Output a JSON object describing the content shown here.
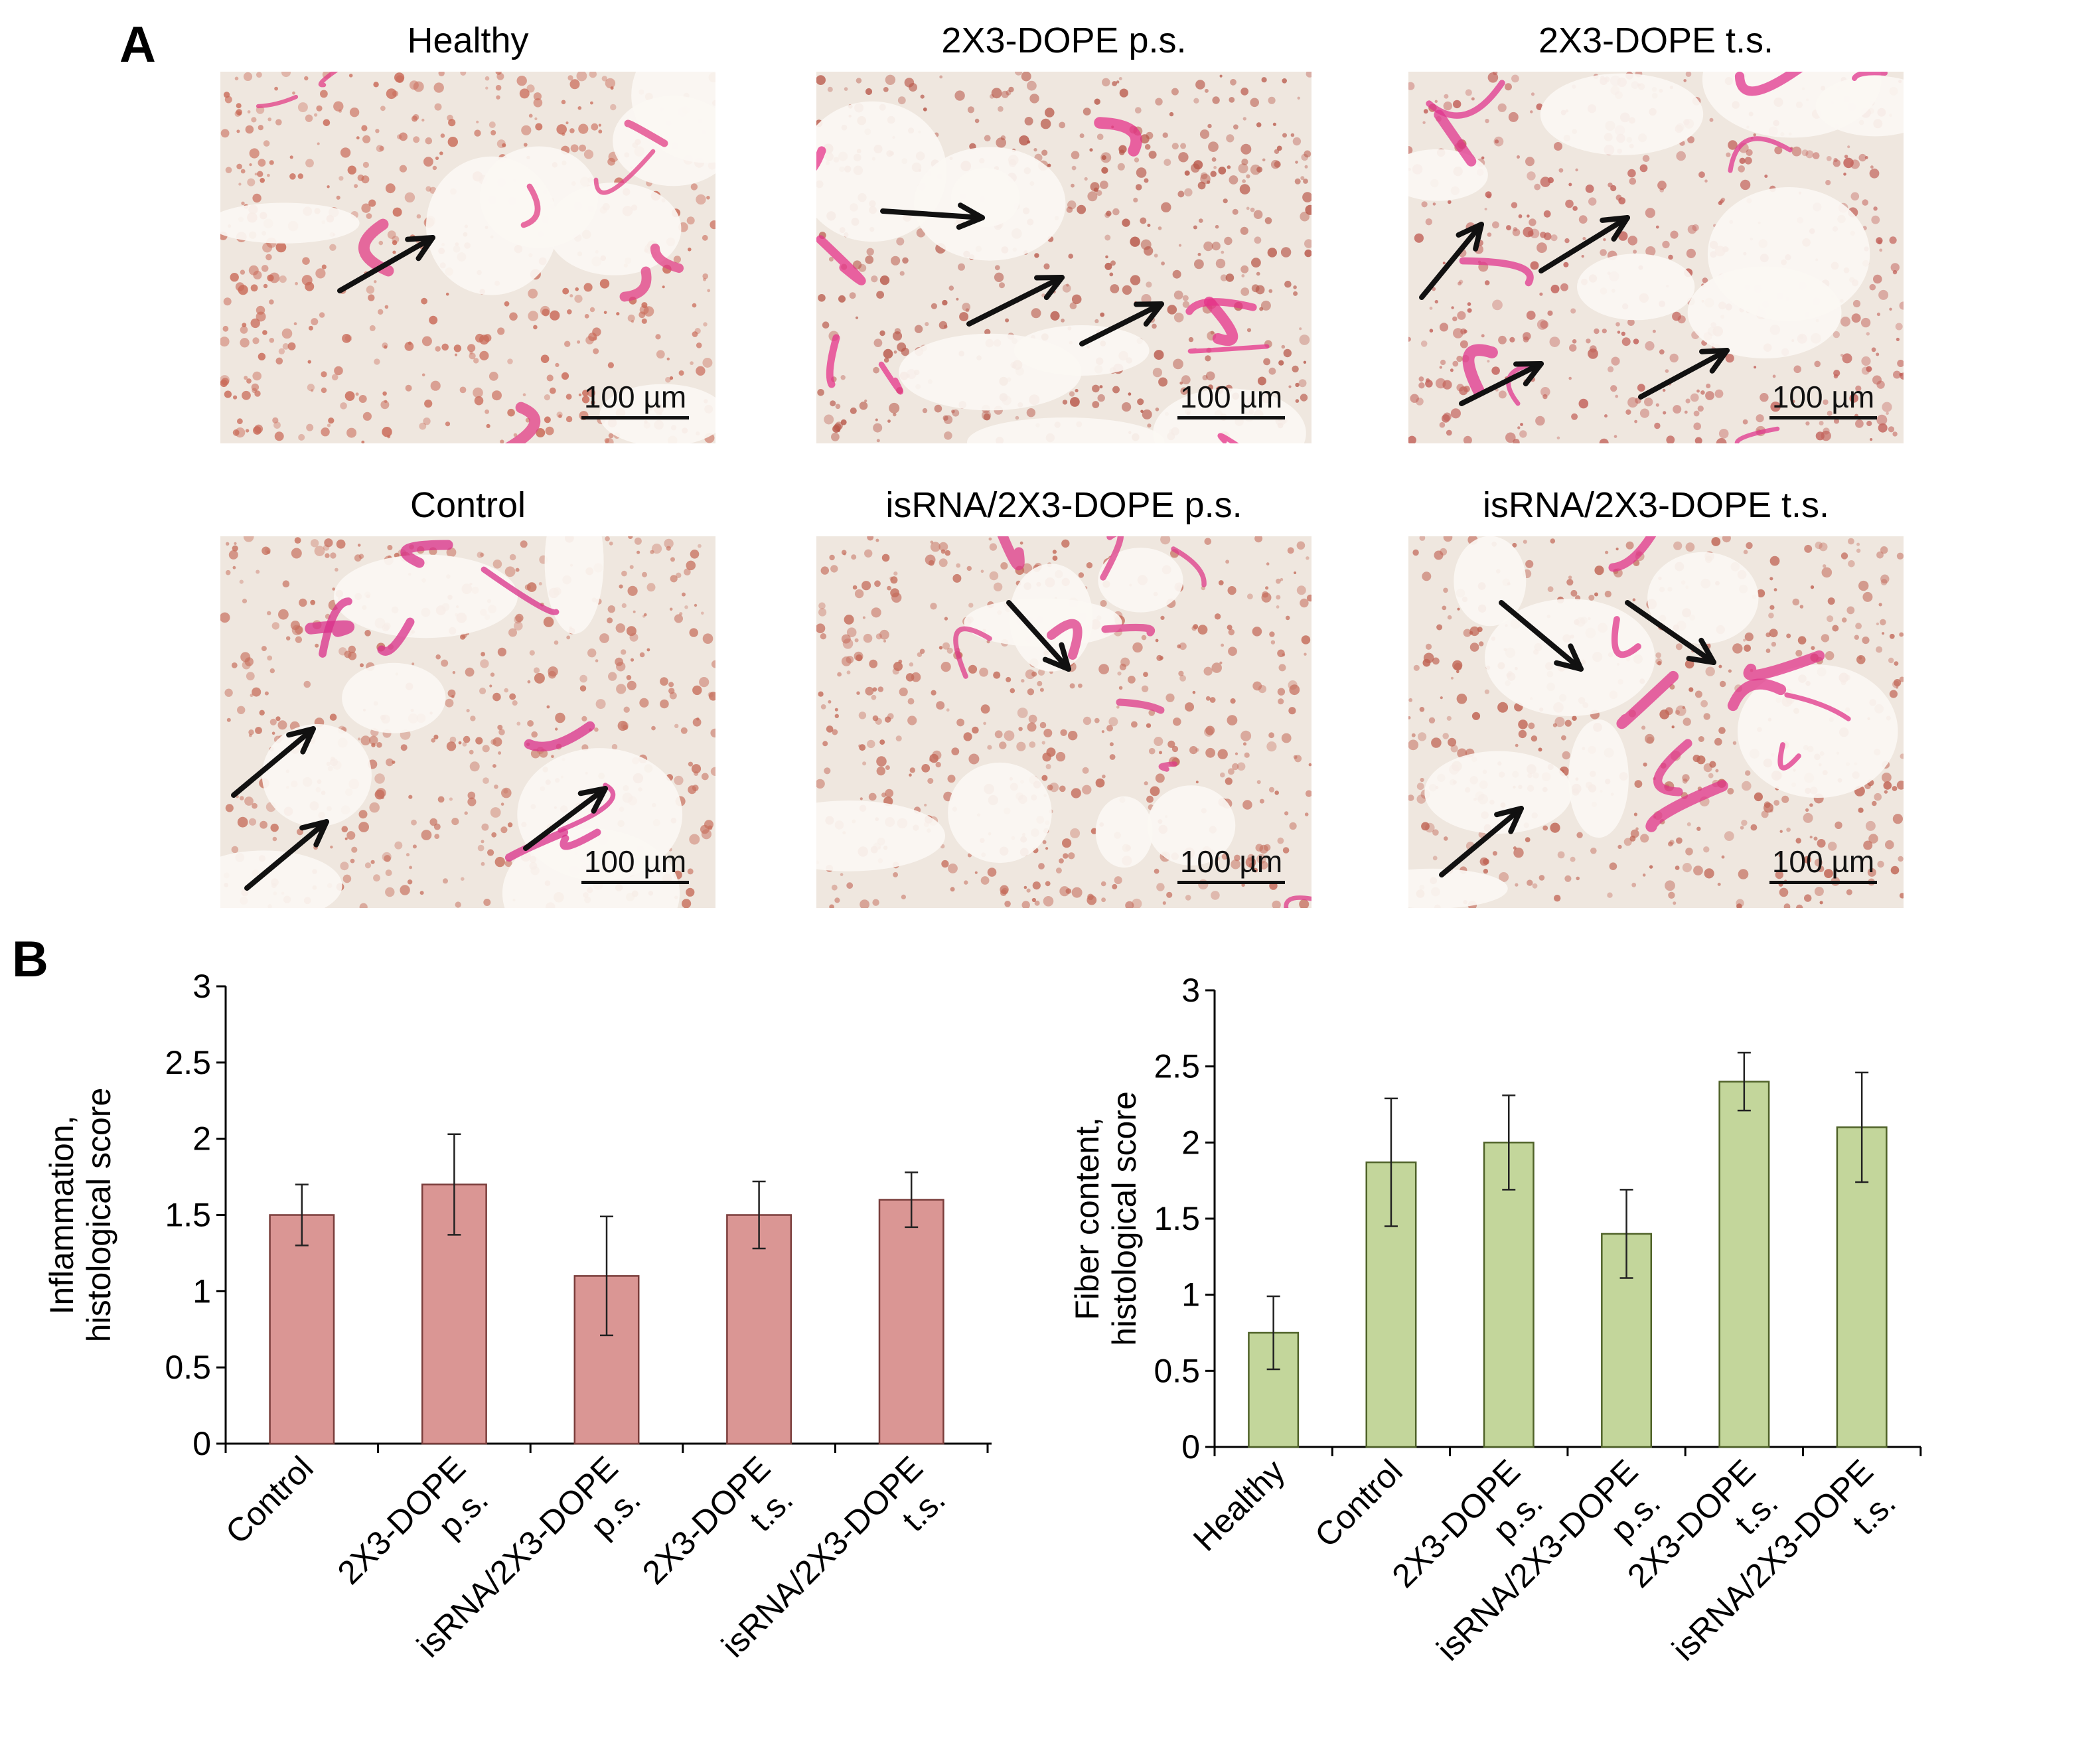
{
  "panels": {
    "a_label": "A",
    "b_label": "B"
  },
  "micrographs": [
    {
      "title": "Healthy",
      "scale": "100 µm",
      "tissue": "#c96a58",
      "stain": "#e23d86",
      "arrows": 1
    },
    {
      "title": "2X3-DOPE p.s.",
      "scale": "100 µm",
      "tissue": "#b8584a",
      "stain": "#e5338a",
      "arrows": 3
    },
    {
      "title": "2X3-DOPE t.s.",
      "scale": "100 µm",
      "tissue": "#c2625a",
      "stain": "#e0368e",
      "arrows": 4
    },
    {
      "title": "Control",
      "scale": "100 µm",
      "tissue": "#c7705e",
      "stain": "#d92f8a",
      "arrows": 3
    },
    {
      "title": "isRNA/2X3-DOPE p.s.",
      "scale": "100 µm",
      "tissue": "#c46b5a",
      "stain": "#de3a88",
      "arrows": 1
    },
    {
      "title": "isRNA/2X3-DOPE t.s.",
      "scale": "100 µm",
      "tissue": "#c06454",
      "stain": "#e0348a",
      "arrows": 3
    }
  ],
  "chart_data": [
    {
      "type": "bar",
      "ylabel": [
        "Inflammation,",
        "histological score"
      ],
      "ylim": [
        0,
        3
      ],
      "yticks": [
        "0",
        "0.5",
        "1",
        "1.5",
        "2",
        "2.5",
        "3"
      ],
      "categories": [
        [
          "Control"
        ],
        [
          "2X3-DOPE",
          "p.s."
        ],
        [
          "isRNA/2X3-DOPE",
          "p.s."
        ],
        [
          "2X3-DOPE",
          "t.s."
        ],
        [
          "isRNA/2X3-DOPE",
          "t.s."
        ]
      ],
      "values": [
        1.5,
        1.7,
        1.1,
        1.5,
        1.6
      ],
      "errors": [
        0.2,
        0.33,
        0.39,
        0.22,
        0.18
      ],
      "color": "#da9694",
      "edge": "#7a3d3b"
    },
    {
      "type": "bar",
      "ylabel": [
        "Fiber content,",
        "histological score"
      ],
      "ylim": [
        0,
        3
      ],
      "yticks": [
        "0",
        "0.5",
        "1",
        "1.5",
        "2",
        "2.5",
        "3"
      ],
      "categories": [
        [
          "Healthy"
        ],
        [
          "Control"
        ],
        [
          "2X3-DOPE",
          "p.s."
        ],
        [
          "isRNA/2X3-DOPE",
          "p.s."
        ],
        [
          "2X3-DOPE",
          "t.s."
        ],
        [
          "isRNA/2X3-DOPE",
          "t.s."
        ]
      ],
      "values": [
        0.75,
        1.87,
        2.0,
        1.4,
        2.4,
        2.1
      ],
      "errors": [
        0.24,
        0.42,
        0.31,
        0.29,
        0.19,
        0.36
      ],
      "color": "#c3d69b",
      "edge": "#4f6228"
    }
  ]
}
